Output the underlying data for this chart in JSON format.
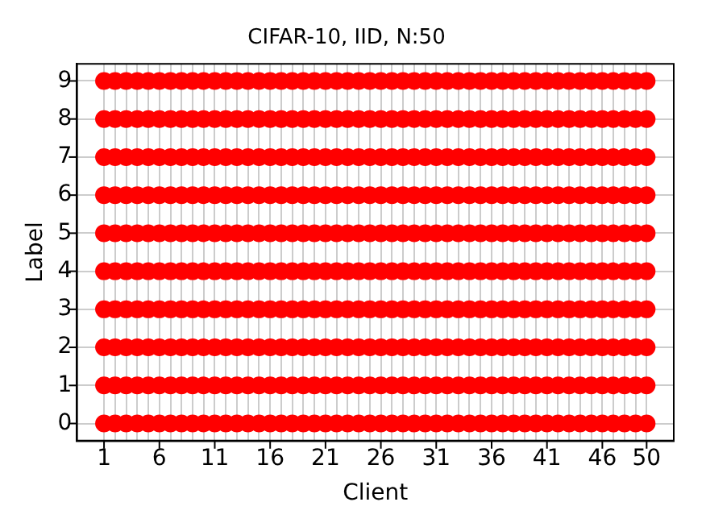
{
  "chart_data": {
    "type": "scatter",
    "title": "CIFAR-10, IID, N:50",
    "xlabel": "Client",
    "ylabel": "Label",
    "marker": "circle",
    "grid": true,
    "legend": false,
    "x": [
      1,
      2,
      3,
      4,
      5,
      6,
      7,
      8,
      9,
      10,
      11,
      12,
      13,
      14,
      15,
      16,
      17,
      18,
      19,
      20,
      21,
      22,
      23,
      24,
      25,
      26,
      27,
      28,
      29,
      30,
      31,
      32,
      33,
      34,
      35,
      36,
      37,
      38,
      39,
      40,
      41,
      42,
      43,
      44,
      45,
      46,
      47,
      48,
      49,
      50
    ],
    "xlim": [
      -1.45,
      52.45
    ],
    "xticks": [
      1,
      {
        "value": 2,
        "label": null
      },
      {
        "value": 3,
        "label": null
      },
      {
        "value": 4,
        "label": null
      },
      {
        "value": 5,
        "label": null
      },
      6,
      {
        "value": 7,
        "label": null
      },
      {
        "value": 8,
        "label": null
      },
      {
        "value": 9,
        "label": null
      },
      {
        "value": 10,
        "label": null
      },
      11,
      {
        "value": 12,
        "label": null
      },
      {
        "value": 13,
        "label": null
      },
      {
        "value": 14,
        "label": null
      },
      {
        "value": 15,
        "label": null
      },
      16,
      {
        "value": 17,
        "label": null
      },
      {
        "value": 18,
        "label": null
      },
      {
        "value": 19,
        "label": null
      },
      {
        "value": 20,
        "label": null
      },
      21,
      {
        "value": 22,
        "label": null
      },
      {
        "value": 23,
        "label": null
      },
      {
        "value": 24,
        "label": null
      },
      {
        "value": 25,
        "label": null
      },
      26,
      {
        "value": 27,
        "label": null
      },
      {
        "value": 28,
        "label": null
      },
      {
        "value": 29,
        "label": null
      },
      {
        "value": 30,
        "label": null
      },
      31,
      {
        "value": 32,
        "label": null
      },
      {
        "value": 33,
        "label": null
      },
      {
        "value": 34,
        "label": null
      },
      {
        "value": 35,
        "label": null
      },
      36,
      {
        "value": 37,
        "label": null
      },
      {
        "value": 38,
        "label": null
      },
      {
        "value": 39,
        "label": null
      },
      {
        "value": 40,
        "label": null
      },
      41,
      {
        "value": 42,
        "label": null
      },
      {
        "value": 43,
        "label": null
      },
      {
        "value": 44,
        "label": null
      },
      {
        "value": 45,
        "label": null
      },
      46,
      {
        "value": 47,
        "label": null
      },
      {
        "value": 48,
        "label": null
      },
      {
        "value": 49,
        "label": null
      },
      50
    ],
    "ylim": [
      -0.45,
      9.45
    ],
    "yticks": [
      0,
      1,
      2,
      3,
      4,
      5,
      6,
      7,
      8,
      9
    ],
    "series": [
      {
        "color": "#ff0000",
        "values": [
          0,
          0,
          0,
          0,
          0,
          0,
          0,
          0,
          0,
          0,
          0,
          0,
          0,
          0,
          0,
          0,
          0,
          0,
          0,
          0,
          0,
          0,
          0,
          0,
          0,
          0,
          0,
          0,
          0,
          0,
          0,
          0,
          0,
          0,
          0,
          0,
          0,
          0,
          0,
          0,
          0,
          0,
          0,
          0,
          0,
          0,
          0,
          0,
          0,
          0
        ]
      },
      {
        "color": "#ff0000",
        "values": [
          1,
          1,
          1,
          1,
          1,
          1,
          1,
          1,
          1,
          1,
          1,
          1,
          1,
          1,
          1,
          1,
          1,
          1,
          1,
          1,
          1,
          1,
          1,
          1,
          1,
          1,
          1,
          1,
          1,
          1,
          1,
          1,
          1,
          1,
          1,
          1,
          1,
          1,
          1,
          1,
          1,
          1,
          1,
          1,
          1,
          1,
          1,
          1,
          1,
          1
        ]
      },
      {
        "color": "#ff0000",
        "values": [
          2,
          2,
          2,
          2,
          2,
          2,
          2,
          2,
          2,
          2,
          2,
          2,
          2,
          2,
          2,
          2,
          2,
          2,
          2,
          2,
          2,
          2,
          2,
          2,
          2,
          2,
          2,
          2,
          2,
          2,
          2,
          2,
          2,
          2,
          2,
          2,
          2,
          2,
          2,
          2,
          2,
          2,
          2,
          2,
          2,
          2,
          2,
          2,
          2,
          2
        ]
      },
      {
        "color": "#ff0000",
        "values": [
          3,
          3,
          3,
          3,
          3,
          3,
          3,
          3,
          3,
          3,
          3,
          3,
          3,
          3,
          3,
          3,
          3,
          3,
          3,
          3,
          3,
          3,
          3,
          3,
          3,
          3,
          3,
          3,
          3,
          3,
          3,
          3,
          3,
          3,
          3,
          3,
          3,
          3,
          3,
          3,
          3,
          3,
          3,
          3,
          3,
          3,
          3,
          3,
          3,
          3
        ]
      },
      {
        "color": "#ff0000",
        "values": [
          4,
          4,
          4,
          4,
          4,
          4,
          4,
          4,
          4,
          4,
          4,
          4,
          4,
          4,
          4,
          4,
          4,
          4,
          4,
          4,
          4,
          4,
          4,
          4,
          4,
          4,
          4,
          4,
          4,
          4,
          4,
          4,
          4,
          4,
          4,
          4,
          4,
          4,
          4,
          4,
          4,
          4,
          4,
          4,
          4,
          4,
          4,
          4,
          4,
          4
        ]
      },
      {
        "color": "#ff0000",
        "values": [
          5,
          5,
          5,
          5,
          5,
          5,
          5,
          5,
          5,
          5,
          5,
          5,
          5,
          5,
          5,
          5,
          5,
          5,
          5,
          5,
          5,
          5,
          5,
          5,
          5,
          5,
          5,
          5,
          5,
          5,
          5,
          5,
          5,
          5,
          5,
          5,
          5,
          5,
          5,
          5,
          5,
          5,
          5,
          5,
          5,
          5,
          5,
          5,
          5,
          5
        ]
      },
      {
        "color": "#ff0000",
        "values": [
          6,
          6,
          6,
          6,
          6,
          6,
          6,
          6,
          6,
          6,
          6,
          6,
          6,
          6,
          6,
          6,
          6,
          6,
          6,
          6,
          6,
          6,
          6,
          6,
          6,
          6,
          6,
          6,
          6,
          6,
          6,
          6,
          6,
          6,
          6,
          6,
          6,
          6,
          6,
          6,
          6,
          6,
          6,
          6,
          6,
          6,
          6,
          6,
          6,
          6
        ]
      },
      {
        "color": "#ff0000",
        "values": [
          7,
          7,
          7,
          7,
          7,
          7,
          7,
          7,
          7,
          7,
          7,
          7,
          7,
          7,
          7,
          7,
          7,
          7,
          7,
          7,
          7,
          7,
          7,
          7,
          7,
          7,
          7,
          7,
          7,
          7,
          7,
          7,
          7,
          7,
          7,
          7,
          7,
          7,
          7,
          7,
          7,
          7,
          7,
          7,
          7,
          7,
          7,
          7,
          7,
          7
        ]
      },
      {
        "color": "#ff0000",
        "values": [
          8,
          8,
          8,
          8,
          8,
          8,
          8,
          8,
          8,
          8,
          8,
          8,
          8,
          8,
          8,
          8,
          8,
          8,
          8,
          8,
          8,
          8,
          8,
          8,
          8,
          8,
          8,
          8,
          8,
          8,
          8,
          8,
          8,
          8,
          8,
          8,
          8,
          8,
          8,
          8,
          8,
          8,
          8,
          8,
          8,
          8,
          8,
          8,
          8,
          8
        ]
      },
      {
        "color": "#ff0000",
        "values": [
          9,
          9,
          9,
          9,
          9,
          9,
          9,
          9,
          9,
          9,
          9,
          9,
          9,
          9,
          9,
          9,
          9,
          9,
          9,
          9,
          9,
          9,
          9,
          9,
          9,
          9,
          9,
          9,
          9,
          9,
          9,
          9,
          9,
          9,
          9,
          9,
          9,
          9,
          9,
          9,
          9,
          9,
          9,
          9,
          9,
          9,
          9,
          9,
          9,
          9
        ]
      }
    ]
  }
}
